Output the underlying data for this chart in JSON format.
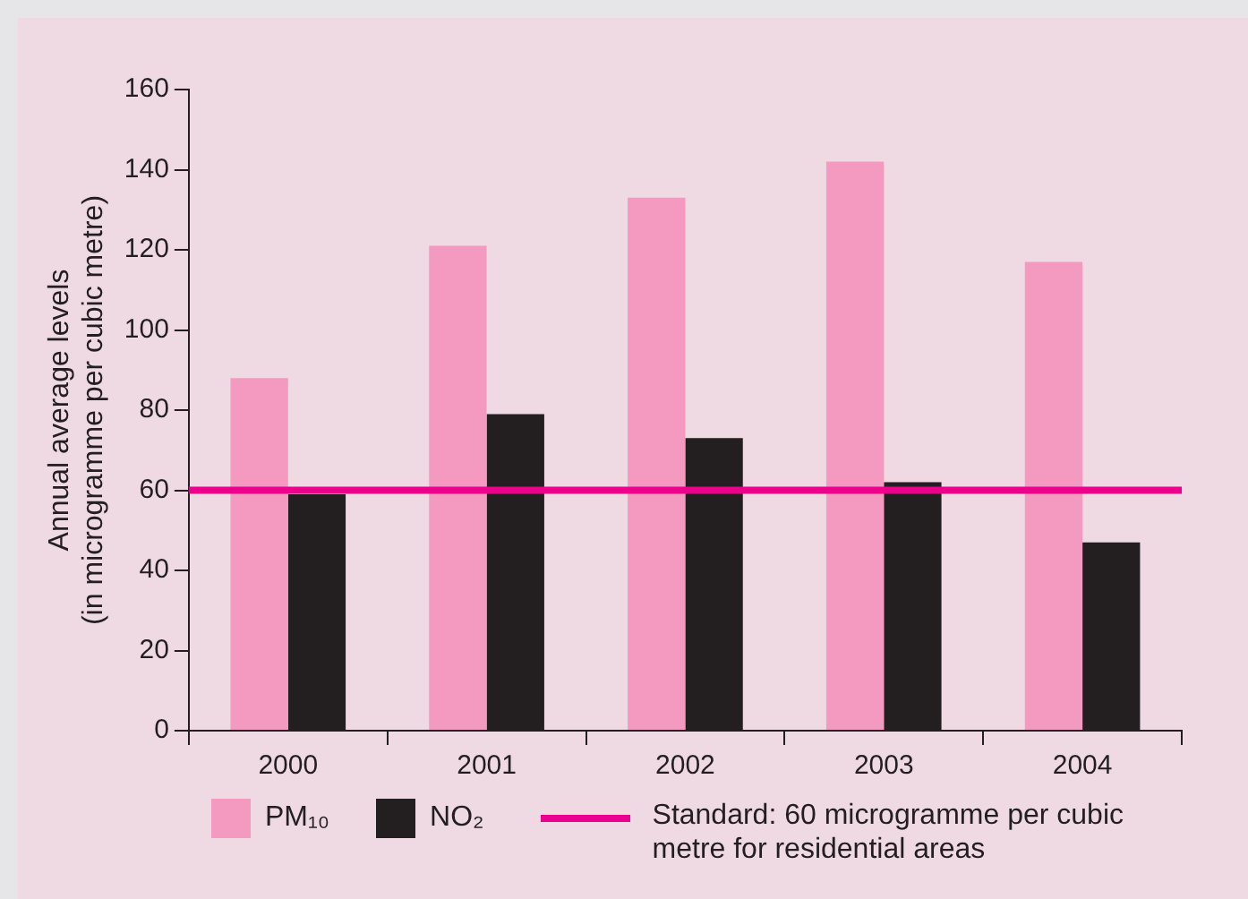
{
  "chart_data": {
    "type": "bar",
    "ylabel": "Annual average levels\n(in microgramme per cubic metre)",
    "categories": [
      "2000",
      "2001",
      "2002",
      "2003",
      "2004"
    ],
    "series": [
      {
        "name": "PM₁₀",
        "color": "#f49ac1",
        "values": [
          88,
          121,
          133,
          142,
          117
        ]
      },
      {
        "name": "NO₂",
        "color": "#231f20",
        "values": [
          59,
          79,
          73,
          62,
          47
        ]
      }
    ],
    "ylim": [
      0,
      160
    ],
    "yticks": [
      0,
      20,
      40,
      60,
      80,
      100,
      120,
      140,
      160
    ],
    "ref_lines": [
      {
        "axis": "y",
        "value": 60,
        "label": "Standard: 60 microgramme per cubic metre for residential areas",
        "color": "#ec008c"
      }
    ],
    "grid": false,
    "legend": "bottom"
  }
}
